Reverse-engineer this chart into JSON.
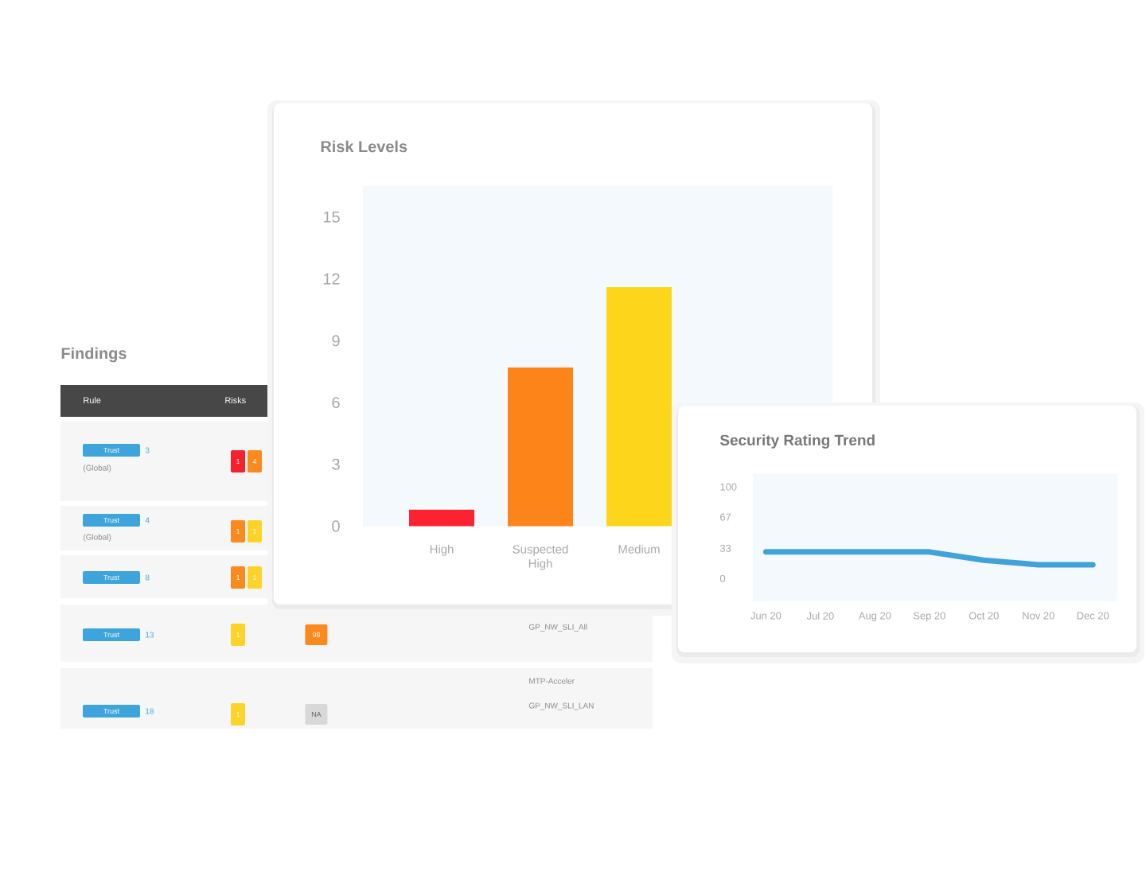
{
  "chart_data": [
    {
      "type": "bar",
      "title": "Risk Levels",
      "categories": [
        "High",
        "Suspected High",
        "Medium"
      ],
      "values": [
        0.8,
        7.7,
        11.6
      ],
      "colors": [
        "#fb2231",
        "#fd8419",
        "#fdd51b"
      ],
      "ylim": [
        0,
        16.5
      ],
      "yticks": [
        0,
        3,
        6,
        9,
        12,
        15
      ]
    },
    {
      "type": "other",
      "title": "Findings",
      "annotations": [
        "Rule",
        "Risks",
        "Trust",
        "3",
        "(Global)",
        "1",
        "4",
        "Trust",
        "4",
        "(Global)",
        "1",
        "1",
        "Trust",
        "8",
        "1",
        "1",
        "GP_NW_SLI_All",
        "Trust",
        "13",
        "1",
        "98",
        "MTP-Acceler",
        "GP_NW_SLI_LAN",
        "Trust",
        "18",
        "1",
        "NA"
      ]
    },
    {
      "type": "line",
      "title": "Security Rating Trend",
      "categories": [
        "Jun 20",
        "Jul 20",
        "Aug 20",
        "Sep 20",
        "Oct 20",
        "Nov 20",
        "Dec 20"
      ],
      "values": [
        29,
        29,
        29,
        29,
        20,
        15,
        15
      ],
      "color": "#3fa2d9",
      "ylim": [
        -25,
        114
      ],
      "yticks": [
        0,
        33,
        67,
        100
      ]
    }
  ]
}
